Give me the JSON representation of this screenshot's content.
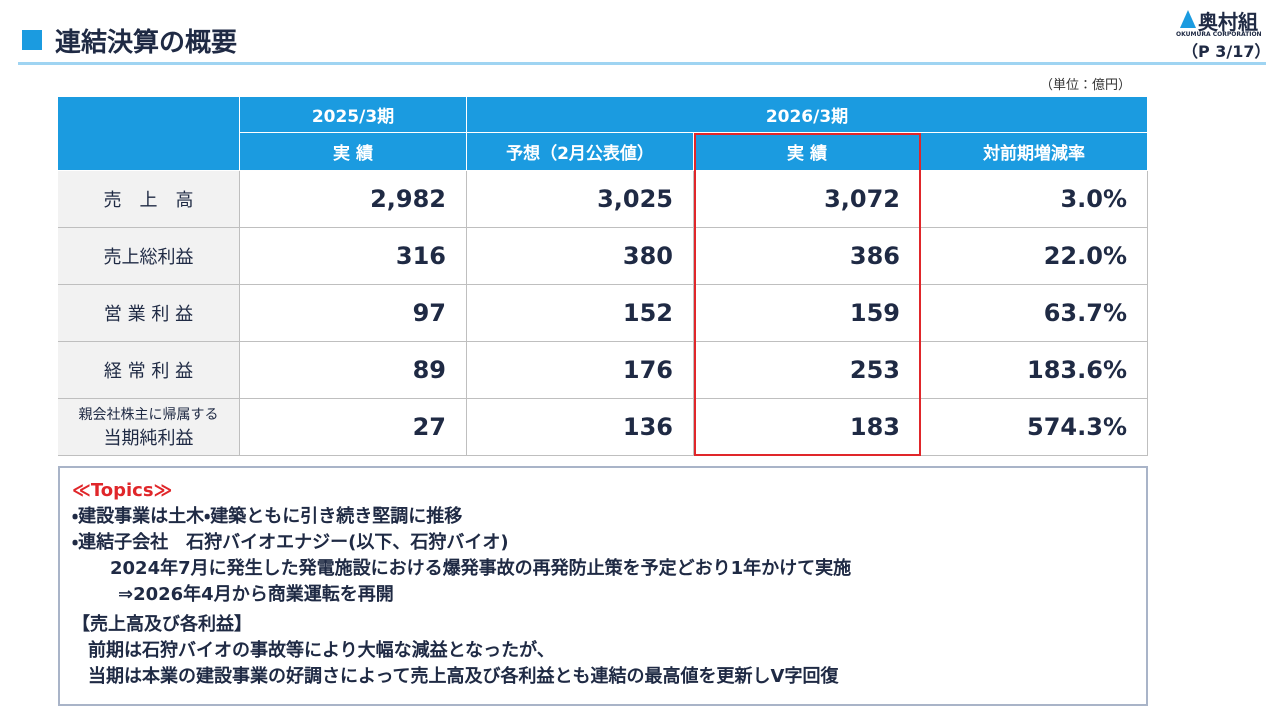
{
  "header": {
    "title": "連結決算の概要",
    "logo": "奥村組",
    "logo_sub": "OKUMURA CORPORATION",
    "page": "（P 3/17）"
  },
  "unit": "（単位：億円）",
  "table": {
    "groups": [
      "2025/3期",
      "2026/3期"
    ],
    "columns": [
      "実 績",
      "予想（2月公表値）",
      "実 績",
      "対前期増減率"
    ],
    "rows": [
      {
        "label": [
          "売　上　高"
        ],
        "cells": [
          "2,982",
          "3,025",
          "3,072",
          "3.0%"
        ]
      },
      {
        "label": [
          "売上総利益"
        ],
        "cells": [
          "316",
          "380",
          "386",
          "22.0%"
        ]
      },
      {
        "label": [
          "営 業 利 益"
        ],
        "cells": [
          "97",
          "152",
          "159",
          "63.7%"
        ]
      },
      {
        "label": [
          "経 常 利 益"
        ],
        "cells": [
          "89",
          "176",
          "253",
          "183.6%"
        ]
      },
      {
        "label": [
          "親会社株主に帰属する",
          "当期純利益"
        ],
        "cells": [
          "27",
          "136",
          "183",
          "574.3%"
        ]
      }
    ]
  },
  "topics": {
    "heading": "≪Topics≫",
    "lines": [
      "・建設事業は土木・建築ともに引き続き堅調に推移",
      "・連結子会社　石狩バイオエナジー(以下、石狩バイオ)",
      "2024年7月に発生した発電施設における爆発事故の再発防止策を予定どおり1年かけて実施",
      "⇒2026年4月から商業運転を再開",
      "【売上高及び各利益】",
      "前期は石狩バイオの事故等により大幅な減益となったが、",
      "当期は本業の建設事業の好調さによって売上高及び各利益とも連結の最高値を更新しV字回復"
    ]
  }
}
